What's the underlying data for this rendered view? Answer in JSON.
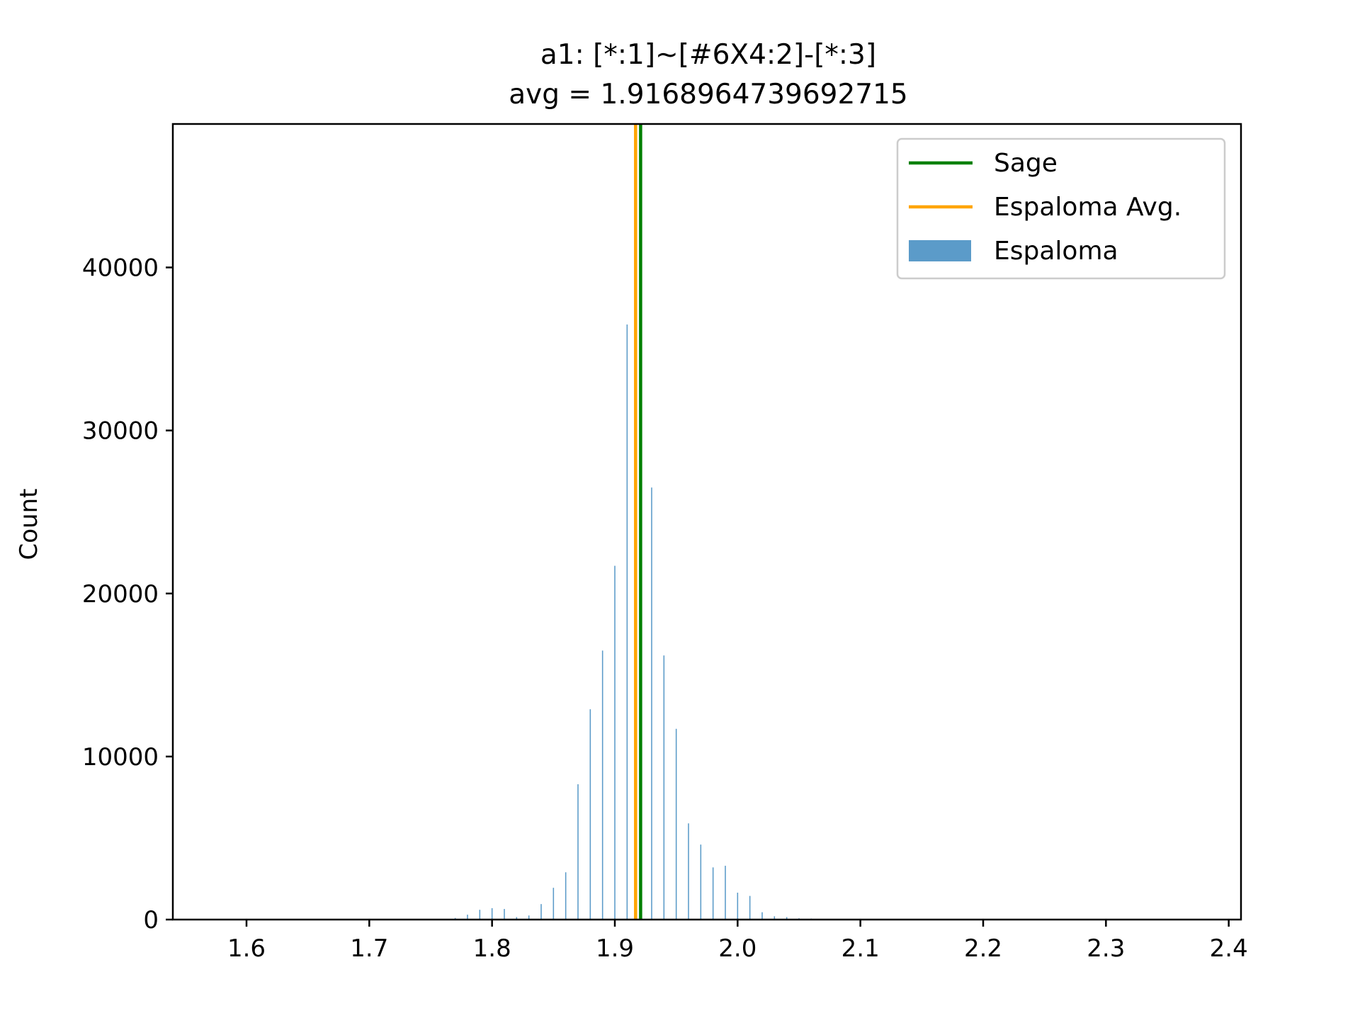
{
  "chart_data": {
    "type": "bar",
    "title_line1": "a1: [*:1]~[#6X4:2]-[*:3]",
    "title_line2": "avg = 1.9168964739692715",
    "xlabel": "",
    "ylabel": "Count",
    "xlim": [
      1.54,
      2.41
    ],
    "ylim": [
      0,
      48800
    ],
    "xticks": [
      1.6,
      1.7,
      1.8,
      1.9,
      2.0,
      2.1,
      2.2,
      2.3,
      2.4
    ],
    "xtick_labels": [
      "1.6",
      "1.7",
      "1.8",
      "1.9",
      "2.0",
      "2.1",
      "2.2",
      "2.3",
      "2.4"
    ],
    "yticks": [
      0,
      10000,
      20000,
      30000,
      40000
    ],
    "ytick_labels": [
      "0",
      "10000",
      "20000",
      "30000",
      "40000"
    ],
    "grid": false,
    "legend_position": "top-right",
    "legend": [
      {
        "label": "Sage",
        "kind": "line",
        "color": "#008000"
      },
      {
        "label": "Espaloma Avg.",
        "kind": "line",
        "color": "#ffa500"
      },
      {
        "label": "Espaloma",
        "kind": "patch",
        "color": "#5b9bc9"
      }
    ],
    "vlines": [
      {
        "name": "Espaloma Avg.",
        "x": 1.9169,
        "color": "#ffa500"
      },
      {
        "name": "Sage",
        "x": 1.921,
        "color": "#008000"
      }
    ],
    "series": [
      {
        "name": "Espaloma",
        "color": "#5b9bc9",
        "bin_width": 0.0009,
        "x": [
          1.77,
          1.78,
          1.79,
          1.8,
          1.81,
          1.82,
          1.83,
          1.84,
          1.85,
          1.86,
          1.87,
          1.88,
          1.89,
          1.9,
          1.91,
          1.92,
          1.93,
          1.94,
          1.95,
          1.96,
          1.97,
          1.98,
          1.99,
          2.0,
          2.01,
          2.02,
          2.03,
          2.04,
          2.05,
          2.06,
          2.07
        ],
        "values": [
          100,
          300,
          600,
          700,
          650,
          150,
          250,
          950,
          1950,
          2900,
          8300,
          12900,
          16500,
          21700,
          36500,
          0,
          26500,
          16200,
          11700,
          5900,
          4600,
          3200,
          3300,
          1650,
          1450,
          450,
          200,
          150,
          80,
          60,
          40
        ]
      }
    ]
  }
}
